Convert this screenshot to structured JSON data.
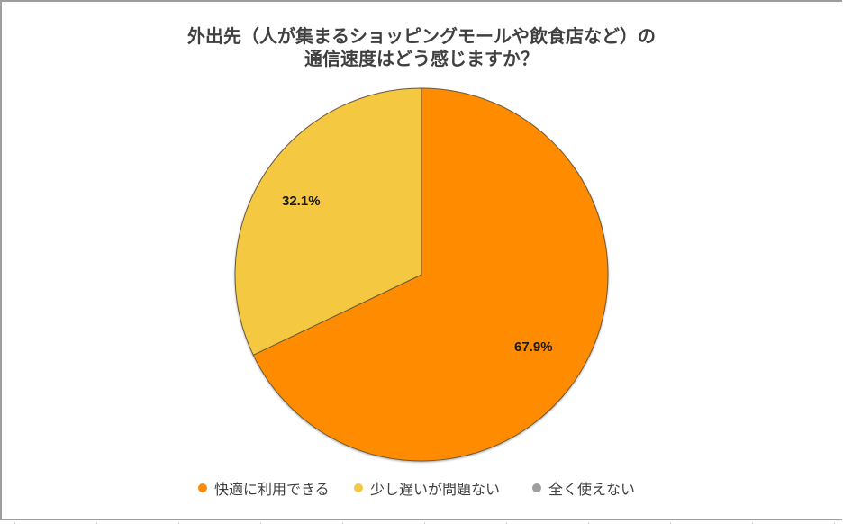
{
  "chart_data": {
    "type": "pie",
    "title": "外出先（人が集まるショッピングモールや飲食店など）の通信速度はどう感じますか？",
    "title_lines": [
      "外出先（人が集まるショッピングモールや飲食店など）の",
      "通信速度はどう感じますか？"
    ],
    "categories": [
      "快適に利用できる",
      "少し遅いが問題ない",
      "全く使えない"
    ],
    "values": [
      67.9,
      32.1,
      0.0
    ],
    "value_labels": [
      "67.9%",
      "32.1%"
    ],
    "colors": [
      "#ff8c00",
      "#f5c842",
      "#9e9e9e"
    ],
    "legend_position": "bottom",
    "start_angle": "12 o'clock, clockwise"
  },
  "legend": {
    "items": [
      {
        "label": "快適に利用できる",
        "color": "#ff8c00"
      },
      {
        "label": "少し遅いが問題ない",
        "color": "#f5c842"
      },
      {
        "label": "全く使えない",
        "color": "#9e9e9e"
      }
    ]
  }
}
